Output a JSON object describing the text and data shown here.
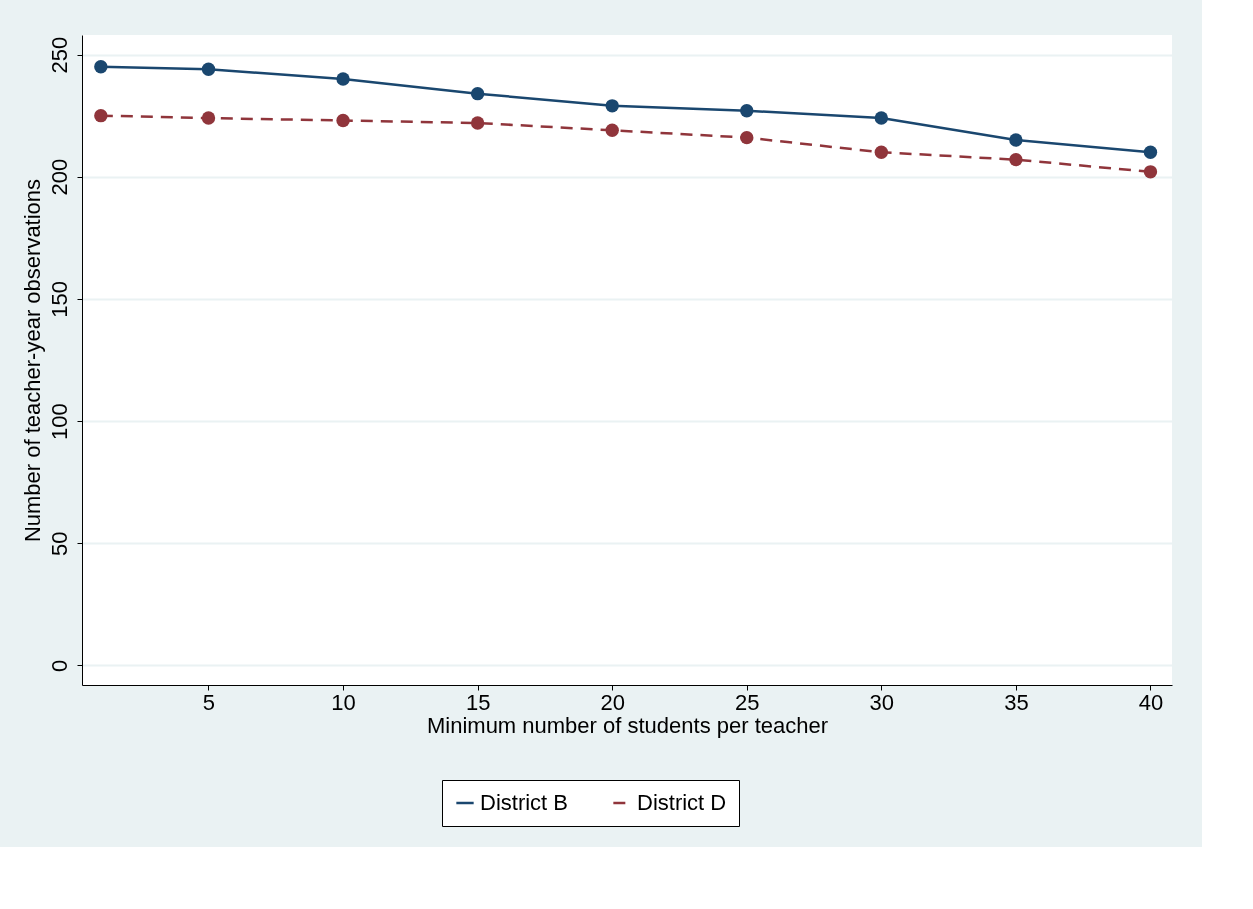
{
  "chart_data": {
    "type": "line",
    "xlabel": "Minimum number of students per teacher",
    "ylabel": "Number of teacher-year observations",
    "x": [
      1,
      5,
      10,
      15,
      20,
      25,
      30,
      35,
      40
    ],
    "series": [
      {
        "name": "District B",
        "color": "#1a476f",
        "line_style": "solid",
        "values": [
          245,
          244,
          240,
          234,
          229,
          227,
          224,
          215,
          210
        ]
      },
      {
        "name": "District D",
        "color": "#90353b",
        "line_style": "dashed",
        "values": [
          225,
          224,
          223,
          222,
          219,
          216,
          210,
          207,
          202
        ]
      }
    ],
    "xlim": [
      0.3,
      40.8
    ],
    "xticks": [
      5,
      10,
      15,
      20,
      25,
      30,
      35,
      40
    ],
    "ylim": [
      -8,
      258
    ],
    "yticks": [
      0,
      50,
      100,
      150,
      200,
      250
    ],
    "grid": "y",
    "legend": "bottom",
    "marker": "circle"
  }
}
